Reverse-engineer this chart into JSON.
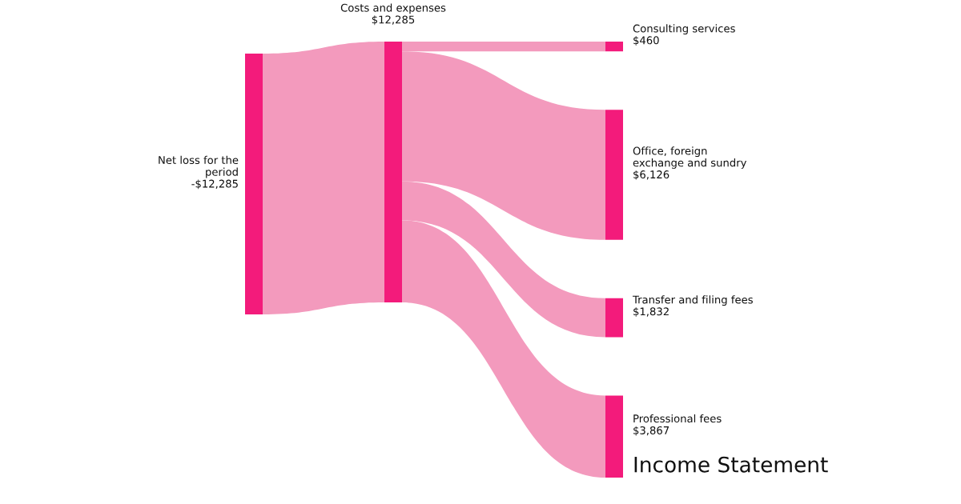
{
  "chart_data": {
    "type": "other",
    "title": "Income Statement",
    "categories": [
      "Net loss for the\nperiod",
      "Costs and expenses",
      "Consulting services",
      "Office, foreign\nexchange and sundry",
      "Transfer and filing fees",
      "Professional fees"
    ],
    "values": [
      -12285,
      12285,
      460,
      6126,
      1832,
      3867
    ],
    "value_labels": [
      "-$12,285",
      "$12,285",
      "$460",
      "$6,126",
      "$1,832",
      "$3,867"
    ],
    "colors": [
      "#f31b7b",
      "#f31b7b",
      "#f31b7b",
      "#f31b7b",
      "#f31b7b",
      "#f31b7b"
    ],
    "color": "#f39abd"
  }
}
